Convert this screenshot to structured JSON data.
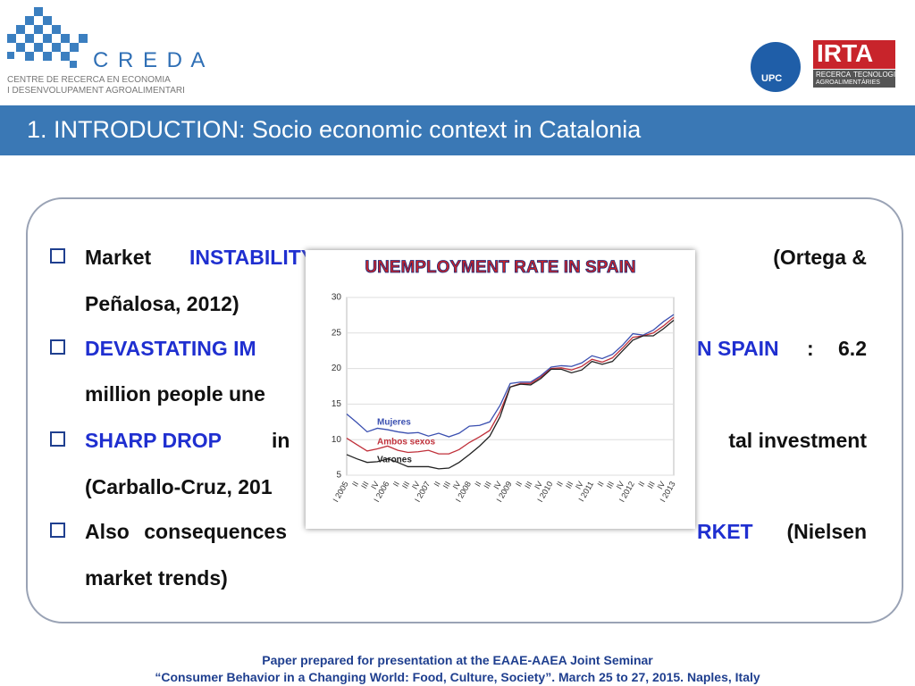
{
  "header": {
    "logo_name": "C R E D A",
    "logo_line1": "CENTRE DE RECERCA EN ECONOMIA",
    "logo_line2": "I DESENVOLUPAMENT AGROALIMENTARI",
    "upc": "UPC",
    "irta": "IRTA",
    "irta_sub1": "RECERCA",
    "irta_sub2": "TECNOLOGIA",
    "irta_sub3": "AGROALIMENTÀRIES"
  },
  "title": "1. INTRODUCTION: Socio economic context in Catalonia",
  "bullets": [
    [
      "Market",
      "INSTABILITY",
      "(Ortega &"
    ],
    [
      "Peñalosa, 2012)"
    ],
    [
      "DEVASTATING IM",
      "N SPAIN",
      ":",
      "6.2"
    ],
    [
      "million people une"
    ],
    [
      "SHARP DROP",
      "in",
      "tal investment"
    ],
    [
      "(Carballo-Cruz, 201"
    ],
    [
      "Also consequences",
      "RKET",
      "(Nielsen"
    ],
    [
      "market trends)"
    ]
  ],
  "chart_data": {
    "type": "line",
    "title": "UNEMPLOYMENT RATE IN SPAIN",
    "categories": [
      "I 2005",
      "II",
      "III",
      "IV",
      "I 2006",
      "II",
      "III",
      "IV",
      "I 2007",
      "II",
      "III",
      "IV",
      "I 2008",
      "II",
      "III",
      "IV",
      "I 2009",
      "II",
      "III",
      "IV",
      "I 2010",
      "II",
      "III",
      "IV",
      "I 2011",
      "II",
      "III",
      "IV",
      "I 2012",
      "II",
      "III",
      "IV",
      "I 2013"
    ],
    "series": [
      {
        "name": "Mujeres",
        "color": "#3a4fb0",
        "values": [
          13.6,
          12.4,
          11.1,
          11.6,
          11.4,
          11.1,
          10.9,
          11.0,
          10.5,
          10.9,
          10.4,
          10.9,
          11.9,
          12.0,
          12.5,
          14.8,
          17.9,
          18.1,
          18.1,
          19.0,
          20.2,
          20.4,
          20.3,
          20.8,
          21.8,
          21.4,
          22.0,
          23.3,
          24.9,
          24.7,
          25.4,
          26.6,
          27.6
        ]
      },
      {
        "name": "Ambos sexos",
        "color": "#c0303a",
        "values": [
          10.2,
          9.3,
          8.4,
          8.7,
          9.1,
          8.5,
          8.2,
          8.3,
          8.5,
          8.0,
          8.0,
          8.6,
          9.6,
          10.4,
          11.3,
          13.9,
          17.4,
          17.9,
          17.9,
          18.8,
          20.0,
          20.1,
          19.8,
          20.3,
          21.3,
          20.9,
          21.5,
          22.9,
          24.4,
          24.6,
          25.0,
          26.0,
          27.2
        ]
      },
      {
        "name": "Varones",
        "color": "#222222",
        "values": [
          7.9,
          7.3,
          6.8,
          6.9,
          7.3,
          6.8,
          6.2,
          6.2,
          6.2,
          5.9,
          6.0,
          6.8,
          7.9,
          9.1,
          10.5,
          13.2,
          17.4,
          17.8,
          17.7,
          18.6,
          19.9,
          19.9,
          19.4,
          19.8,
          21.0,
          20.6,
          21.0,
          22.5,
          24.0,
          24.6,
          24.6,
          25.6,
          26.8
        ]
      }
    ],
    "ylim": [
      5,
      30
    ],
    "yticks": [
      5,
      10,
      15,
      20,
      25,
      30
    ],
    "grid": true
  },
  "footer": [
    "Paper prepared for presentation at the EAAE-AAEA Joint Seminar",
    "“Consumer Behavior in a Changing World: Food, Culture, Society”. March 25 to 27, 2015. Naples, Italy"
  ]
}
